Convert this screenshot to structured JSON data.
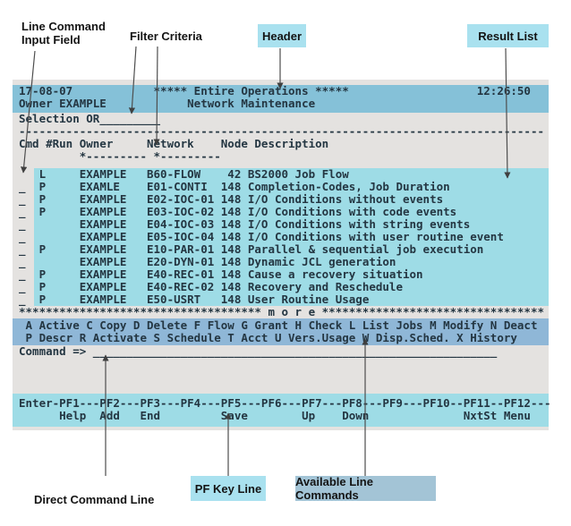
{
  "annotations": {
    "line_command_1": "Line Command",
    "line_command_2": "Input Field",
    "filter_criteria": "Filter Criteria",
    "header": "Header",
    "result_list": "Result List",
    "direct_command": "Direct Command Line",
    "pf_key_line": "PF Key Line",
    "available_line_commands": "Available Line Commands"
  },
  "colors": {
    "header_band": "#85c1d8",
    "result_band": "#9edce6",
    "command_band": "#8fb7d7",
    "pf_band": "#9edce6",
    "screen_bg": "#e4e2e0",
    "chip_light": "#a9e1ef",
    "chip_dark": "#a3c4d6",
    "terminal_text": "#243642"
  },
  "terminal": {
    "date": "17-08-07",
    "title": "***** Entire Operations *****",
    "time": "12:26:50",
    "owner_label": "Owner EXAMPLE",
    "subtitle": "Network Maintenance",
    "selection_label": "Selection OR",
    "selection_value": "_________",
    "separator": "------------------------------------------------------------------------------",
    "columns_header": "Cmd #Run Owner     Network    Node Description",
    "columns_ruler": "         *--------- *---------",
    "rows": [
      {
        "cmd_input": " ",
        "cmd": "L",
        "owner": "EXAMPLE",
        "network": "B60-FLOW",
        "node": "42",
        "description": "BS2000 Job Flow"
      },
      {
        "cmd_input": "_",
        "cmd": "P",
        "owner": "EXAMLE",
        "network": "E01-CONTI",
        "node": "148",
        "description": "Completion-Codes, Job Duration"
      },
      {
        "cmd_input": "_",
        "cmd": "P",
        "owner": "EXAMPLE",
        "network": "E02-IOC-01",
        "node": "148",
        "description": "I/O Conditions without events"
      },
      {
        "cmd_input": "_",
        "cmd": "P",
        "owner": "EXAMPLE",
        "network": "E03-IOC-02",
        "node": "148",
        "description": "I/O Conditions with code events"
      },
      {
        "cmd_input": "_",
        "cmd": " ",
        "owner": "EXAMPLE",
        "network": "E04-IOC-03",
        "node": "148",
        "description": "I/O Conditions with string events"
      },
      {
        "cmd_input": "_",
        "cmd": " ",
        "owner": "EXAMPLE",
        "network": "E05-IOC-04",
        "node": "148",
        "description": "I/O Conditions with user routine event"
      },
      {
        "cmd_input": "_",
        "cmd": "P",
        "owner": "EXAMPLE",
        "network": "E10-PAR-01",
        "node": "148",
        "description": "Parallel & sequential job execution"
      },
      {
        "cmd_input": "_",
        "cmd": " ",
        "owner": "EXAMPLE",
        "network": "E20-DYN-01",
        "node": "148",
        "description": "Dynamic JCL generation"
      },
      {
        "cmd_input": "_",
        "cmd": "P",
        "owner": "EXAMPLE",
        "network": "E40-REC-01",
        "node": "148",
        "description": "Cause a recovery situation"
      },
      {
        "cmd_input": "_",
        "cmd": "P",
        "owner": "EXAMPLE",
        "network": "E40-REC-02",
        "node": "148",
        "description": "Recovery and Reschedule"
      },
      {
        "cmd_input": "_",
        "cmd": "P",
        "owner": "EXAMPLE",
        "network": "E50-USRT",
        "node": "148",
        "description": "User Routine Usage"
      }
    ],
    "more_line": "************************************ m o r e *********************************",
    "line_commands_1": " A Active C Copy D Delete F Flow G Grant H Check L List Jobs M Modify N Deact",
    "line_commands_2": " P Descr R Activate S Schedule T Acct U Vers.Usage W Disp.Sched. X History",
    "command_label": "Command => ",
    "command_value": "____________________________________________________________",
    "pf_line1": "Enter-PF1---PF2---PF3---PF4---PF5---PF6---PF7---PF8---PF9---PF10--PF11--PF12---",
    "pf_line2": "      Help  Add   End         Save        Up    Down              NxtSt Menu"
  }
}
